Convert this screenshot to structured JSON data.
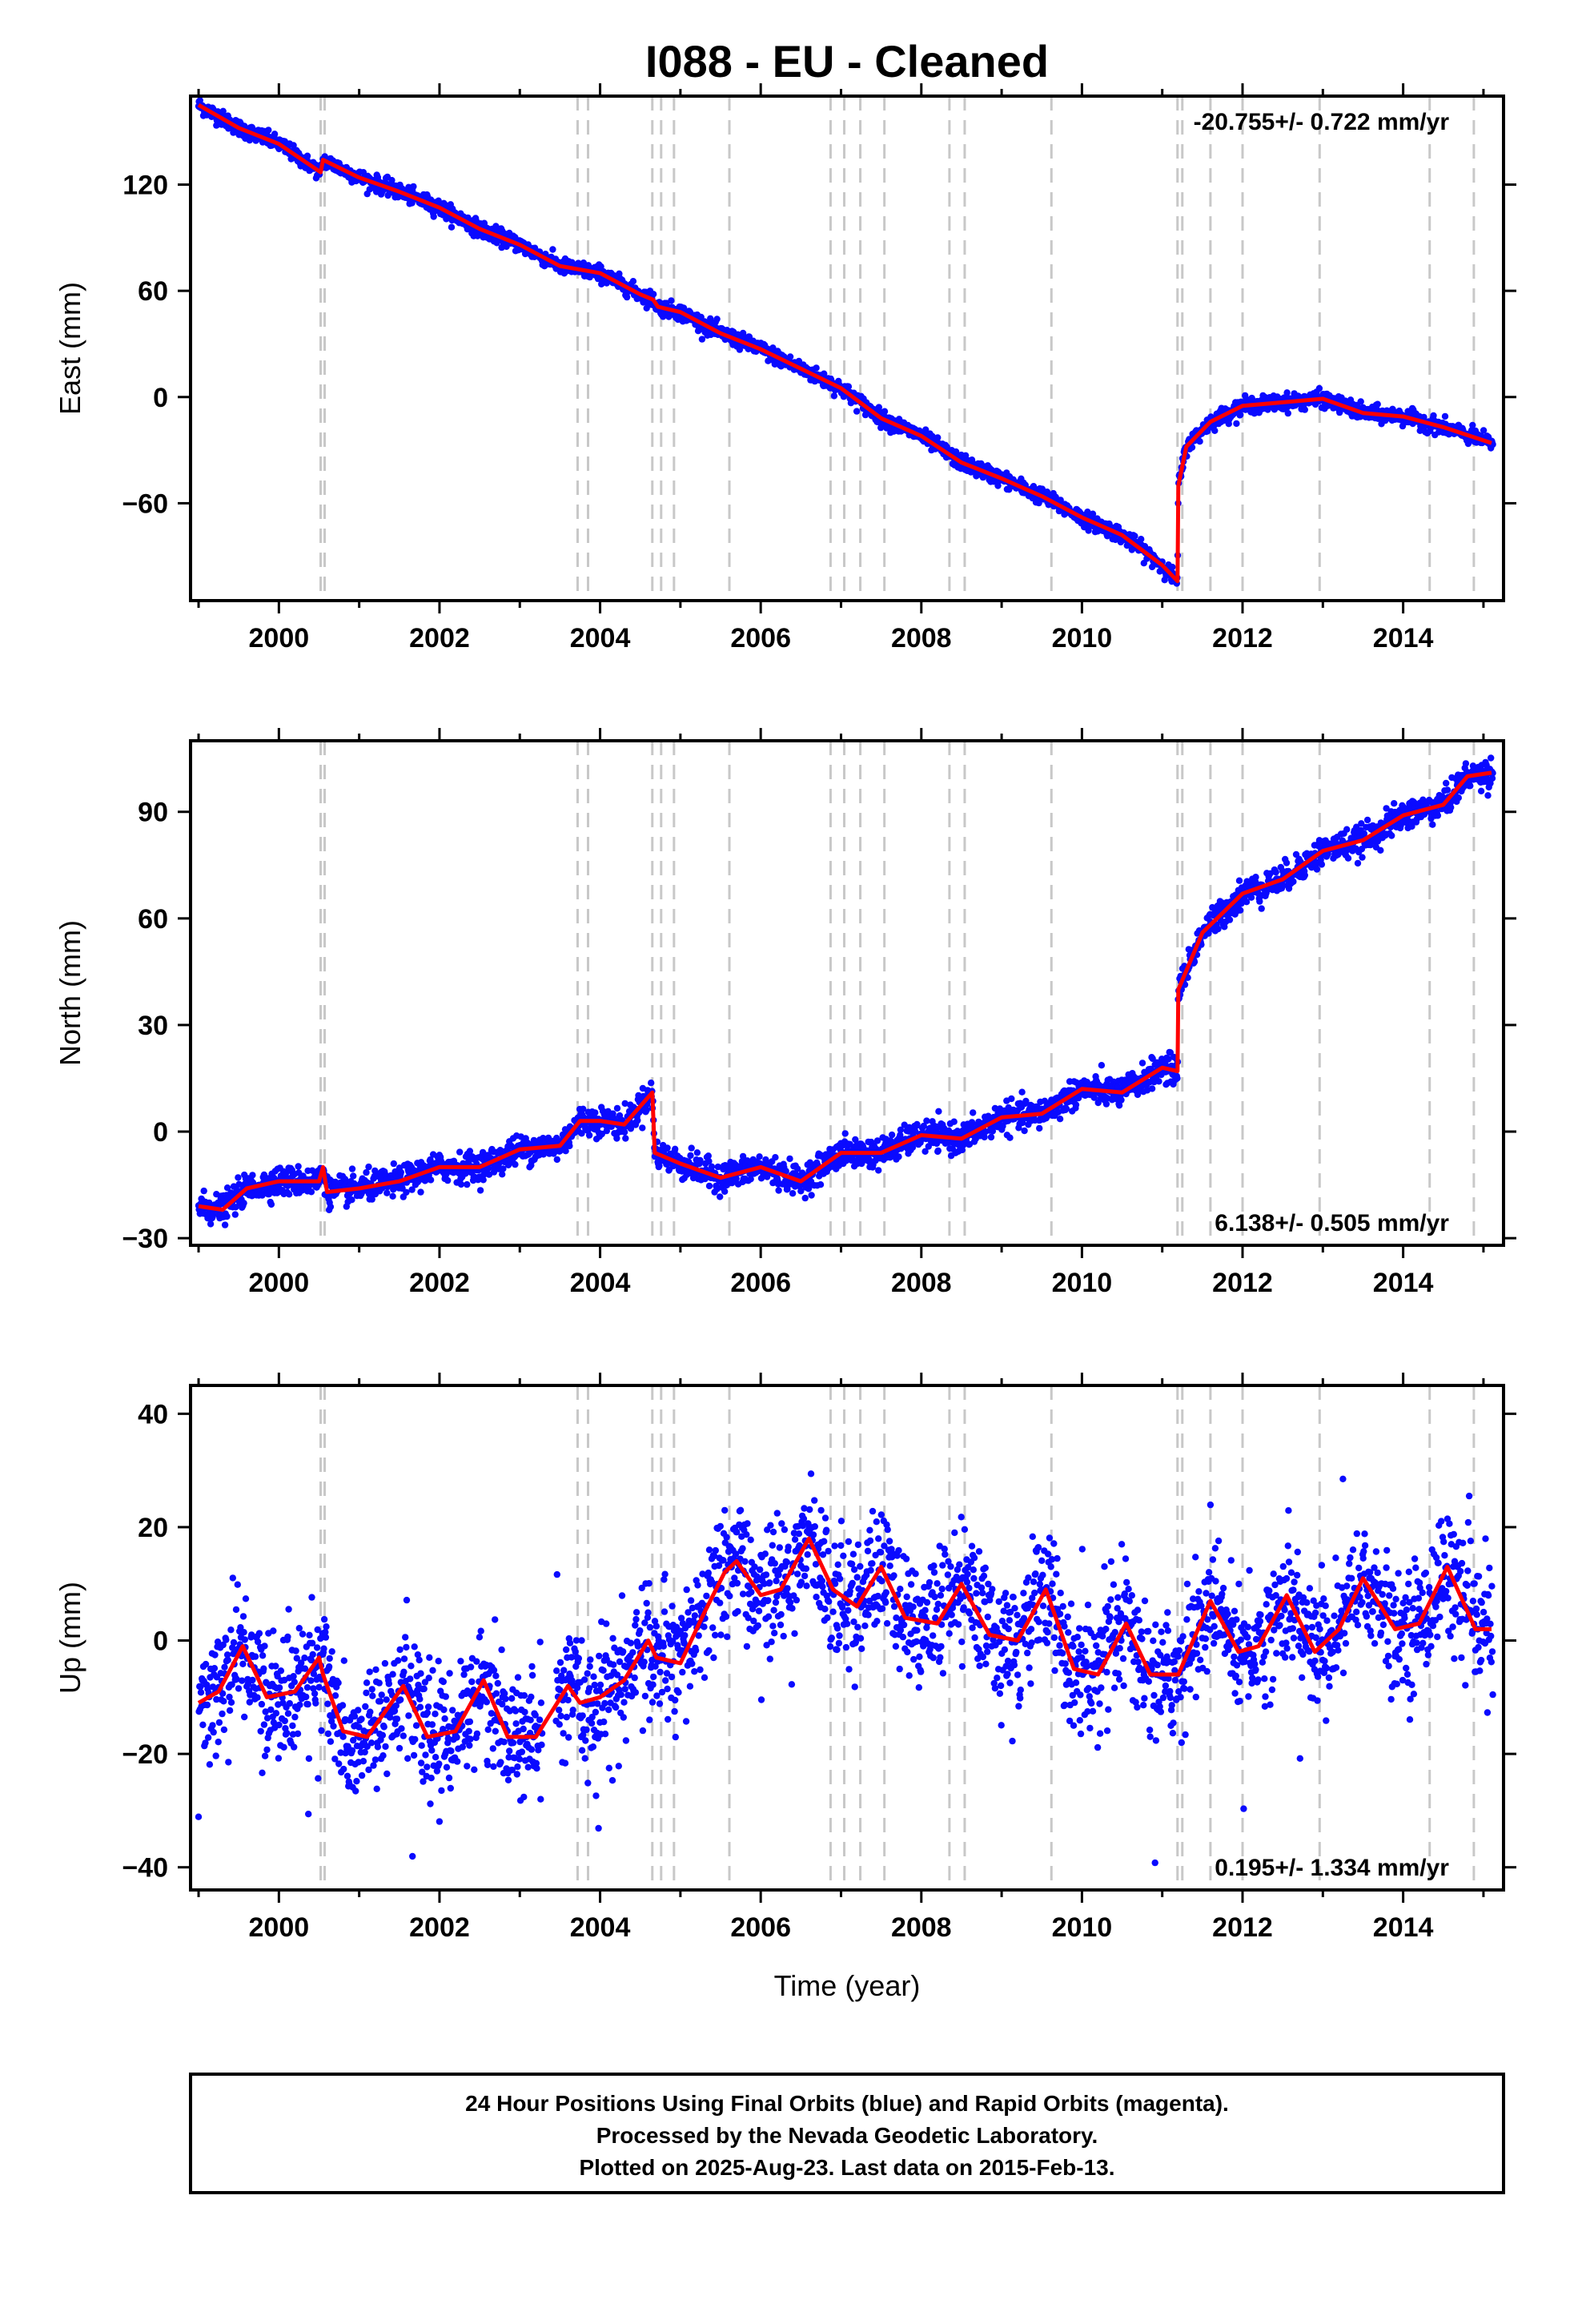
{
  "title": "I088  - EU - Cleaned",
  "colors": {
    "points": "#0a0aff",
    "model": "#ff0000",
    "events": "#c8c8c8",
    "frame": "#000000"
  },
  "event_years": [
    2000.52,
    2000.57,
    2003.72,
    2003.85,
    2004.65,
    2004.76,
    2004.92,
    2005.61,
    2006.87,
    2007.04,
    2007.24,
    2007.54,
    2008.35,
    2008.54,
    2009.62,
    2011.19,
    2011.25,
    2011.6,
    2012.0,
    2012.96,
    2014.33,
    2014.88
  ],
  "xlabel": "Time (year)",
  "x_ticks": [
    "2000",
    "2002",
    "2004",
    "2006",
    "2008",
    "2010",
    "2012",
    "2014"
  ],
  "footer": {
    "line1": "24 Hour Positions Using Final Orbits (blue) and Rapid Orbits (magenta).",
    "line2": "Processed by the Nevada Geodetic Laboratory.",
    "line3": "Plotted on 2025-Aug-23. Last data on 2015-Feb-13."
  },
  "chart_data": [
    {
      "type": "scatter",
      "component": "east",
      "ylabel": "East (mm)",
      "rate_label": "-20.755+/- 0.722 mm/yr",
      "xlim": [
        1998.9,
        2015.25
      ],
      "ylim": [
        -115,
        170
      ],
      "y_ticks": [
        "120",
        "60",
        "0",
        "-60"
      ],
      "noise_mm": 2.2,
      "series": [
        {
          "kind": "model",
          "points": [
            [
              1999.0,
              165
            ],
            [
              1999.5,
              152
            ],
            [
              2000.0,
              143
            ],
            [
              2000.52,
              127
            ],
            [
              2000.55,
              134
            ],
            [
              2001.0,
              124
            ],
            [
              2001.5,
              116
            ],
            [
              2002.0,
              107
            ],
            [
              2002.5,
              95
            ],
            [
              2003.0,
              86
            ],
            [
              2003.5,
              74
            ],
            [
              2004.0,
              70
            ],
            [
              2004.5,
              58
            ],
            [
              2004.66,
              55
            ],
            [
              2004.72,
              51
            ],
            [
              2005.0,
              48
            ],
            [
              2005.5,
              36
            ],
            [
              2006.0,
              27
            ],
            [
              2006.5,
              16
            ],
            [
              2007.0,
              5
            ],
            [
              2007.5,
              -12
            ],
            [
              2008.0,
              -22
            ],
            [
              2008.5,
              -37
            ],
            [
              2009.0,
              -46
            ],
            [
              2009.5,
              -56
            ],
            [
              2010.0,
              -68
            ],
            [
              2010.5,
              -78
            ],
            [
              2011.0,
              -95
            ],
            [
              2011.19,
              -104
            ],
            [
              2011.2,
              -50
            ],
            [
              2011.3,
              -28
            ],
            [
              2011.6,
              -14
            ],
            [
              2012.0,
              -5
            ],
            [
              2012.5,
              -3
            ],
            [
              2013.0,
              -1
            ],
            [
              2013.5,
              -9
            ],
            [
              2014.0,
              -11
            ],
            [
              2014.5,
              -17
            ],
            [
              2015.1,
              -26
            ]
          ]
        }
      ]
    },
    {
      "type": "scatter",
      "component": "north",
      "ylabel": "North (mm)",
      "rate_label": "6.138+/- 0.505 mm/yr",
      "xlim": [
        1998.9,
        2015.25
      ],
      "ylim": [
        -32,
        110
      ],
      "y_ticks": [
        "90",
        "60",
        "30",
        "0",
        "-30"
      ],
      "noise_mm": 2.0,
      "series": [
        {
          "kind": "model",
          "points": [
            [
              1999.0,
              -21
            ],
            [
              1999.3,
              -22
            ],
            [
              1999.6,
              -16
            ],
            [
              2000.0,
              -14
            ],
            [
              2000.5,
              -14
            ],
            [
              2000.55,
              -10
            ],
            [
              2000.6,
              -17
            ],
            [
              2001.0,
              -16
            ],
            [
              2001.5,
              -14
            ],
            [
              2002.0,
              -10
            ],
            [
              2002.5,
              -10
            ],
            [
              2003.0,
              -5
            ],
            [
              2003.5,
              -4
            ],
            [
              2003.75,
              3
            ],
            [
              2004.0,
              3
            ],
            [
              2004.3,
              2
            ],
            [
              2004.65,
              11
            ],
            [
              2004.68,
              -6
            ],
            [
              2005.0,
              -9
            ],
            [
              2005.5,
              -13
            ],
            [
              2006.0,
              -10
            ],
            [
              2006.5,
              -14
            ],
            [
              2007.0,
              -6
            ],
            [
              2007.5,
              -6
            ],
            [
              2008.0,
              -1
            ],
            [
              2008.5,
              -2
            ],
            [
              2009.0,
              4
            ],
            [
              2009.5,
              5
            ],
            [
              2010.0,
              12
            ],
            [
              2010.5,
              11
            ],
            [
              2011.0,
              18
            ],
            [
              2011.19,
              17
            ],
            [
              2011.2,
              40
            ],
            [
              2011.5,
              56
            ],
            [
              2012.0,
              67
            ],
            [
              2012.5,
              71
            ],
            [
              2013.0,
              79
            ],
            [
              2013.5,
              82
            ],
            [
              2014.0,
              89
            ],
            [
              2014.5,
              92
            ],
            [
              2014.8,
              100
            ],
            [
              2015.1,
              101
            ]
          ]
        }
      ]
    },
    {
      "type": "scatter",
      "component": "up",
      "ylabel": "Up (mm)",
      "rate_label": "0.195+/- 1.334 mm/yr",
      "xlim": [
        1998.9,
        2015.25
      ],
      "ylim": [
        -44,
        45
      ],
      "y_ticks": [
        "40",
        "20",
        "0",
        "-20",
        "-40"
      ],
      "noise_mm": 5.5,
      "series": [
        {
          "kind": "model",
          "points": [
            [
              1999.0,
              -11
            ],
            [
              1999.25,
              -9
            ],
            [
              1999.55,
              -1
            ],
            [
              1999.85,
              -10
            ],
            [
              2000.2,
              -9
            ],
            [
              2000.5,
              -3
            ],
            [
              2000.55,
              -6
            ],
            [
              2000.8,
              -16
            ],
            [
              2001.1,
              -17
            ],
            [
              2001.55,
              -8
            ],
            [
              2001.85,
              -17
            ],
            [
              2002.2,
              -16
            ],
            [
              2002.55,
              -7
            ],
            [
              2002.85,
              -17
            ],
            [
              2003.2,
              -17
            ],
            [
              2003.6,
              -8
            ],
            [
              2003.75,
              -11
            ],
            [
              2004.0,
              -10
            ],
            [
              2004.3,
              -7
            ],
            [
              2004.6,
              0
            ],
            [
              2004.7,
              -3
            ],
            [
              2005.0,
              -4
            ],
            [
              2005.3,
              5
            ],
            [
              2005.55,
              12
            ],
            [
              2005.7,
              14
            ],
            [
              2006.0,
              8
            ],
            [
              2006.25,
              9
            ],
            [
              2006.6,
              18
            ],
            [
              2006.9,
              9
            ],
            [
              2007.2,
              6
            ],
            [
              2007.5,
              13
            ],
            [
              2007.8,
              4
            ],
            [
              2008.2,
              3
            ],
            [
              2008.5,
              10
            ],
            [
              2008.85,
              1
            ],
            [
              2009.2,
              0
            ],
            [
              2009.55,
              9
            ],
            [
              2009.9,
              -5
            ],
            [
              2010.2,
              -6
            ],
            [
              2010.55,
              3
            ],
            [
              2010.85,
              -6
            ],
            [
              2011.2,
              -6
            ],
            [
              2011.6,
              7
            ],
            [
              2011.95,
              -2
            ],
            [
              2012.2,
              -1
            ],
            [
              2012.55,
              8
            ],
            [
              2012.9,
              -2
            ],
            [
              2013.2,
              2
            ],
            [
              2013.5,
              11
            ],
            [
              2013.9,
              2
            ],
            [
              2014.2,
              3
            ],
            [
              2014.55,
              13
            ],
            [
              2014.9,
              2
            ],
            [
              2015.1,
              2
            ]
          ]
        }
      ]
    }
  ]
}
